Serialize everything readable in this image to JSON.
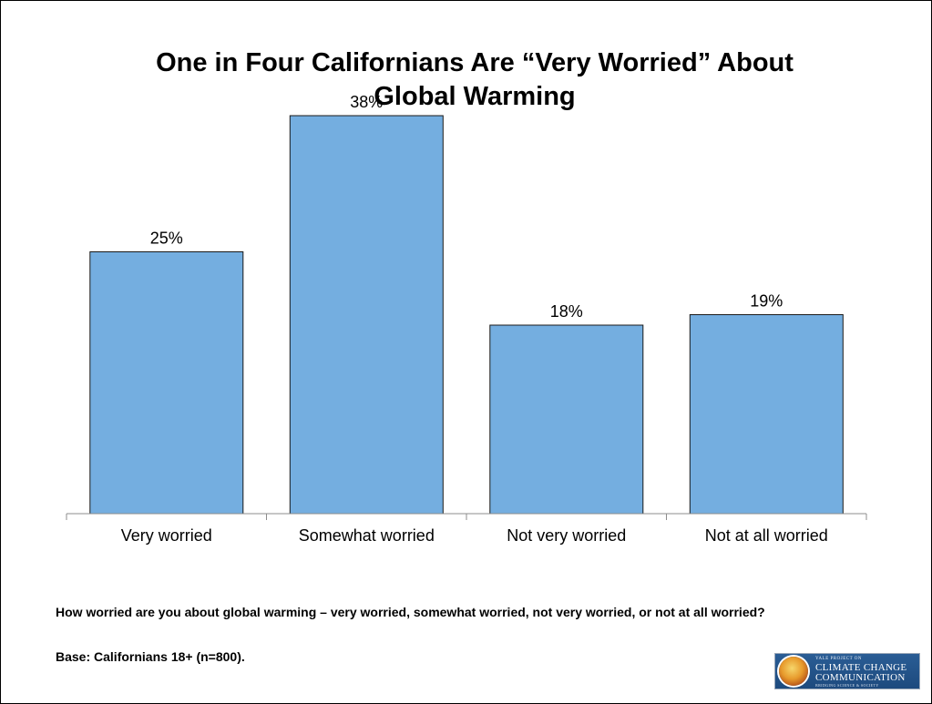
{
  "slide": {
    "title_line1": "One in Four Californians Are “Very Worried” About",
    "title_line2": "Global Warming",
    "question": "How worried are you about global warming – very worried, somewhat worried, not very worried, or not at all worried?",
    "base": "Base: Californians 18+ (n=800)."
  },
  "logo": {
    "small_text": "YALE PROJECT ON",
    "line1": "CLIMATE CHANGE",
    "line2": "COMMUNICATION",
    "tagline": "BRIDGING SCIENCE & SOCIETY"
  },
  "chart_data": {
    "type": "bar",
    "categories": [
      "Very worried",
      "Somewhat worried",
      "Not very worried",
      "Not at all worried"
    ],
    "values": [
      25,
      38,
      18,
      19
    ],
    "data_labels": [
      "25%",
      "38%",
      "18%",
      "19%"
    ],
    "ylim": [
      0,
      40
    ],
    "grid": false,
    "legend": "none",
    "colors": {
      "bar_fill": "#74aee0",
      "bar_stroke": "#1a1a1a",
      "axis": "#8c8c8c"
    }
  }
}
